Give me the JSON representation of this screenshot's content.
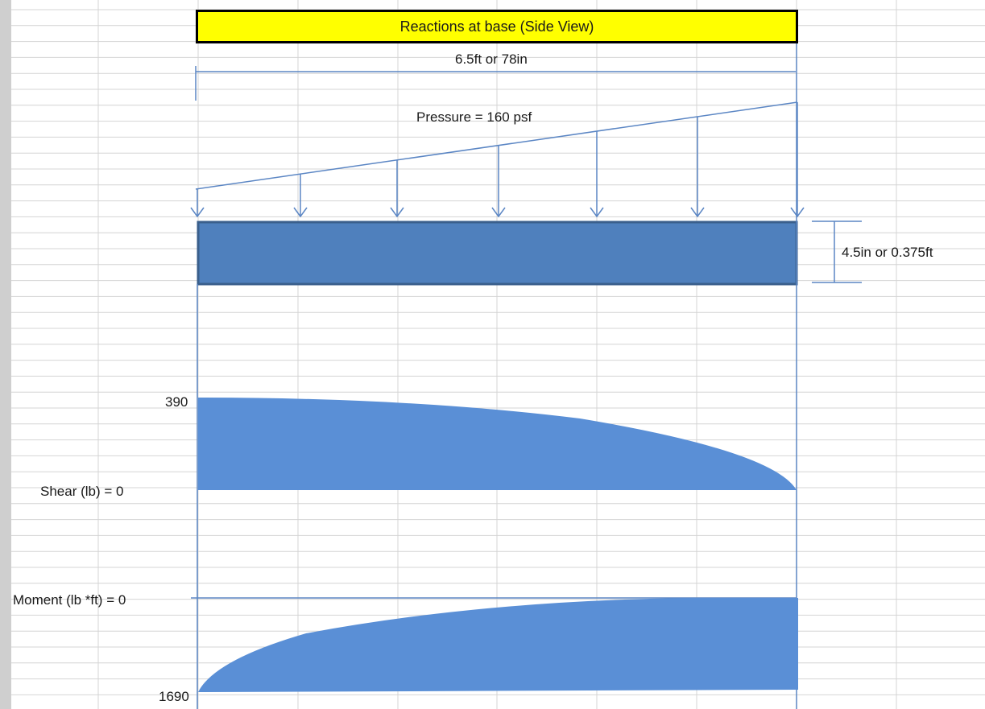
{
  "title": "Reactions at base (Side View)",
  "span_label": "6.5ft or 78in",
  "pressure_label": "Pressure = 160 psf",
  "thickness_label": "4.5in or 0.375ft",
  "shear": {
    "max_label": "390",
    "zero_label": "Shear (lb) = 0"
  },
  "moment": {
    "zero_label": "Moment (lb *ft) = 0",
    "max_label": "1690"
  },
  "colors": {
    "title_fill": "#ffff00",
    "line": "#5b86c4",
    "beam_fill": "#4f80bd",
    "beam_border": "#3a5f8c",
    "diagram_fill": "#5a8fd6",
    "grid": "#d4d4d4"
  }
}
